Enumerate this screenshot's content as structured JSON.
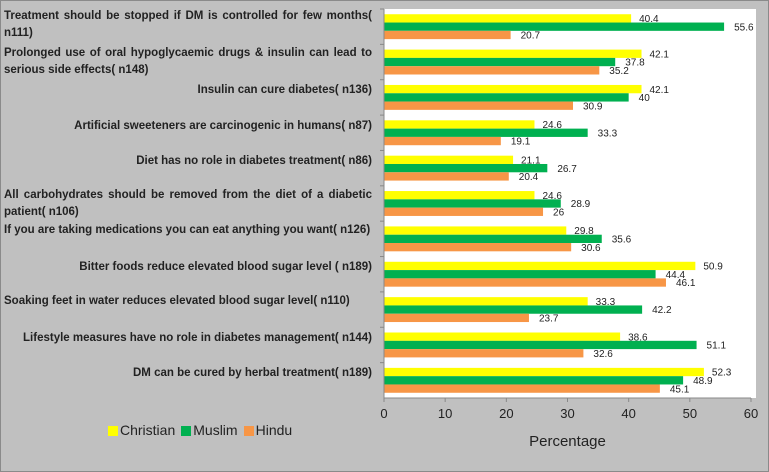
{
  "chart_data": {
    "type": "bar",
    "orientation": "horizontal",
    "categories": [
      "Treatment should be stopped if DM is controlled for few months( n111)",
      "Prolonged use of oral hypoglycaemic drugs & insulin can lead to serious side effects( n148)",
      "Insulin can cure diabetes( n136)",
      "Artificial sweeteners are carcinogenic in humans( n87)",
      "Diet has no role in diabetes treatment( n86)",
      "All carbohydrates should be removed from the diet of a diabetic patient( n106)",
      "If you are taking medications you can eat anything you want( n126)",
      "Bitter foods reduce elevated blood sugar level ( n189)",
      "Soaking feet in water reduces elevated blood sugar level( n110)",
      "Lifestyle measures have no role in diabetes management( n144)",
      "DM can be cured by herbal treatment( n189)"
    ],
    "series": [
      {
        "name": "Christian",
        "color": "#ffff00",
        "values": [
          40.4,
          42.1,
          42.1,
          24.6,
          21.1,
          24.6,
          29.8,
          50.9,
          33.3,
          38.6,
          52.3
        ]
      },
      {
        "name": "Muslim",
        "color": "#00b050",
        "values": [
          55.6,
          37.8,
          40,
          33.3,
          26.7,
          28.9,
          35.6,
          44.4,
          42.2,
          51.1,
          48.9
        ]
      },
      {
        "name": "Hindu",
        "color": "#f79646",
        "values": [
          20.7,
          35.2,
          30.9,
          19.1,
          20.4,
          26,
          30.6,
          46.1,
          23.7,
          32.6,
          45.1
        ]
      }
    ],
    "xlabel": "Percentage",
    "ylabel": "",
    "xlim": [
      0,
      60
    ],
    "xticks": [
      "0",
      "10",
      "20",
      "30",
      "40",
      "50",
      "60"
    ],
    "grid": false,
    "legend_position": "bottom-left"
  }
}
